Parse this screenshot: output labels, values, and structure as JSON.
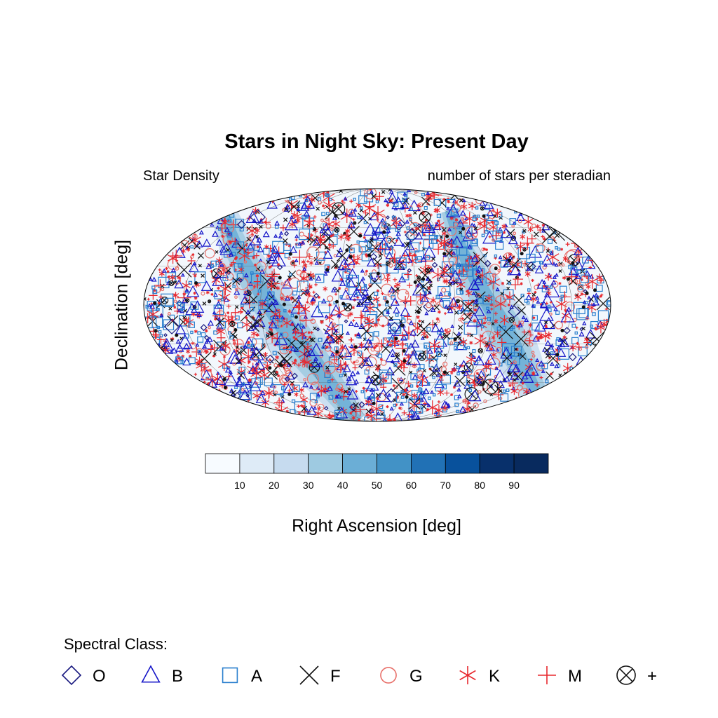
{
  "chart_data": {
    "type": "scatter",
    "title": "Stars in Night Sky: Present Day",
    "left_subtitle": "Star Density",
    "right_subtitle": "number of stars per steradian",
    "xlabel": "Right Ascension [deg]",
    "ylabel": "Declination [deg]",
    "projection": "Mollweide (elliptical world map)",
    "grid": true,
    "colorbar": {
      "levels": [
        10,
        20,
        30,
        40,
        50,
        60,
        70,
        80,
        90
      ],
      "colors": [
        "#f7fbff",
        "#deebf7",
        "#c6dbef",
        "#9ecae1",
        "#6baed6",
        "#4292c6",
        "#2171b5",
        "#08519c",
        "#08306b",
        "#082a5e"
      ],
      "placement": "bottom"
    },
    "legend": {
      "title": "Spectral Class:",
      "placement": "bottom",
      "entries": [
        {
          "label": "O",
          "marker": "diamond",
          "color": "#1a1a80"
        },
        {
          "label": "B",
          "marker": "triangle",
          "color": "#1515c8"
        },
        {
          "label": "A",
          "marker": "square",
          "color": "#2a7fce"
        },
        {
          "label": "F",
          "marker": "x",
          "color": "#111111"
        },
        {
          "label": "G",
          "marker": "circle",
          "color": "#e8706a"
        },
        {
          "label": "K",
          "marker": "asterisk",
          "color": "#e8282e"
        },
        {
          "label": "M",
          "marker": "plus",
          "color": "#e8282e"
        },
        {
          "label": "+",
          "marker": "circle-x",
          "color": "#111111"
        }
      ]
    }
  }
}
